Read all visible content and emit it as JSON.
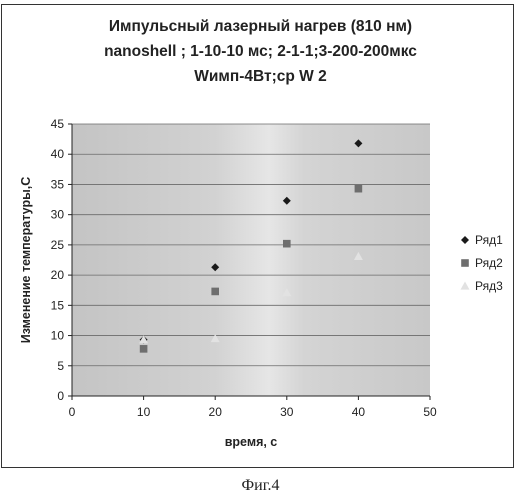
{
  "title_lines": [
    "Импульсный лазерный нагрев (810 нм)",
    "nanoshell ; 1-10-10 мс; 2-1-1;3-200-200мкс",
    "Wимп-4Вт;ср W 2"
  ],
  "caption": "Фиг.4",
  "chart_data": {
    "type": "scatter",
    "title": "Импульсный лазерный нагрев (810 нм) nanoshell ; 1-10-10 мс; 2-1-1;3-200-200мкс Wимп-4Вт;ср W 2",
    "xlabel": "время, с",
    "ylabel": "Изменение температуры,С",
    "xlim": [
      0,
      50
    ],
    "ylim": [
      0,
      45
    ],
    "xticks": [
      "0",
      "10",
      "20",
      "30",
      "40",
      "50"
    ],
    "yticks": [
      "0",
      "5",
      "10",
      "15",
      "20",
      "25",
      "30",
      "35",
      "40",
      "45"
    ],
    "x": [
      10,
      20,
      30,
      40
    ],
    "grid": true,
    "legend_position": "right",
    "series": [
      {
        "name": "Ряд1",
        "marker": "diamond",
        "color": "#1a1a1a",
        "values": [
          9.3,
          21.3,
          32.3,
          41.8
        ]
      },
      {
        "name": "Ряд2",
        "marker": "square",
        "color": "#6e6e6e",
        "values": [
          7.8,
          17.3,
          25.2,
          34.3
        ]
      },
      {
        "name": "Ряд3",
        "marker": "triangle",
        "color": "#e2e2e2",
        "values": [
          9.3,
          9.5,
          17.1,
          23.1
        ]
      }
    ]
  }
}
